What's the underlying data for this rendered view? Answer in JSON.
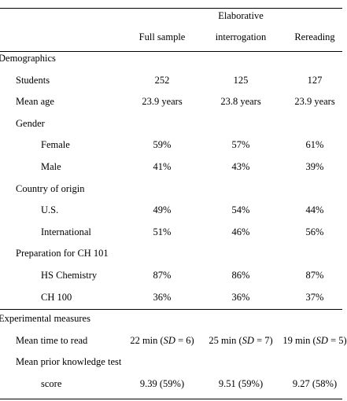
{
  "header": {
    "top": "Elaborative",
    "columns": [
      "Full sample",
      "interrogation",
      "Rereading"
    ]
  },
  "sections": [
    {
      "title": "Demographics",
      "items": [
        {
          "label": "Students",
          "values": [
            "252",
            "125",
            "127"
          ]
        },
        {
          "label": "Mean age",
          "values": [
            "23.9 years",
            "23.8 years",
            "23.9 years"
          ]
        },
        {
          "label": "Gender",
          "subitems": [
            {
              "label": "Female",
              "values": [
                "59%",
                "57%",
                "61%"
              ]
            },
            {
              "label": "Male",
              "values": [
                "41%",
                "43%",
                "39%"
              ]
            }
          ]
        },
        {
          "label": "Country of origin",
          "subitems": [
            {
              "label": "U.S.",
              "values": [
                "49%",
                "54%",
                "44%"
              ]
            },
            {
              "label": "International",
              "values": [
                "51%",
                "46%",
                "56%"
              ]
            }
          ]
        },
        {
          "label": "Preparation for CH 101",
          "subitems": [
            {
              "label": "HS Chemistry",
              "values": [
                "87%",
                "86%",
                "87%"
              ]
            },
            {
              "label": "CH 100",
              "values": [
                "36%",
                "36%",
                "37%"
              ]
            }
          ]
        }
      ]
    },
    {
      "title": "Experimental measures",
      "items": [
        {
          "label": "Mean time to read",
          "values": [
            [
              "22 min (",
              "SD",
              " = 6)"
            ],
            [
              "25 min (",
              "SD",
              " = 7)"
            ],
            [
              "19 min (",
              "SD",
              " = 5)"
            ]
          ]
        },
        {
          "label": "Mean prior knowledge test",
          "subitems": [
            {
              "label": "score",
              "values": [
                "9.39 (59%)",
                "9.51 (59%)",
                "9.27 (58%)"
              ]
            }
          ]
        }
      ]
    }
  ]
}
